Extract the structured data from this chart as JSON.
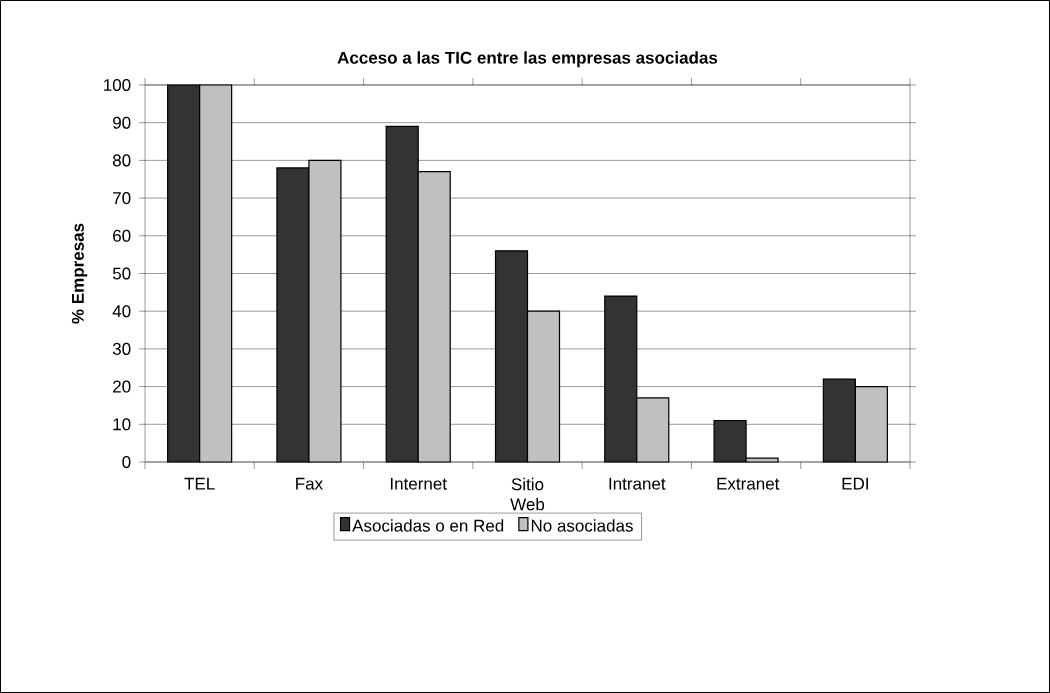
{
  "chart_data": {
    "type": "bar",
    "title": "Acceso a las TIC entre las empresas asociadas",
    "ylabel": "% Empresas",
    "categories": [
      "TEL",
      "Fax",
      "Internet",
      "Sitio Web",
      "Intranet",
      "Extranet",
      "EDI"
    ],
    "series": [
      {
        "name": "Asociadas o en Red",
        "color": "#333333",
        "values": [
          100,
          78,
          89,
          56,
          44,
          11,
          22
        ]
      },
      {
        "name": "No asociadas",
        "color": "#c0c0c0",
        "values": [
          100,
          80,
          77,
          40,
          17,
          1,
          20
        ]
      }
    ],
    "ylim": [
      0,
      100
    ],
    "yticks": [
      0,
      10,
      20,
      30,
      40,
      50,
      60,
      70,
      80,
      90,
      100
    ],
    "grid": "y",
    "legend": "bottom"
  }
}
